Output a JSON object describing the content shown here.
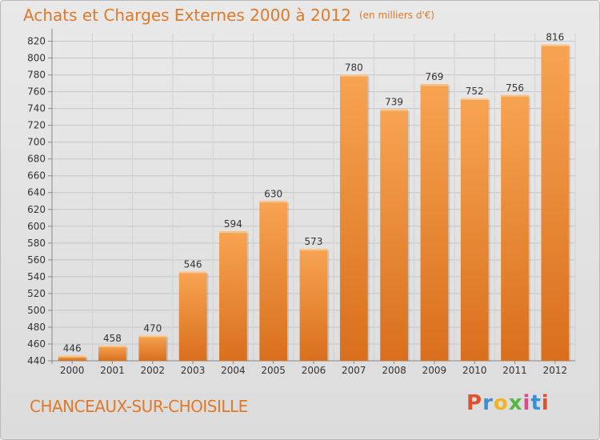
{
  "header": {
    "title": "Achats et Charges Externes 2000 à 2012",
    "unit": "(en milliers d'€)"
  },
  "footer": {
    "commune": "CHANCEAUX-SUR-CHOISILLE",
    "logo_letters": [
      "P",
      "r",
      "o",
      "x",
      "i",
      "t",
      "i"
    ]
  },
  "colors": {
    "bar_top": "#f7a452",
    "bar_bottom": "#d96f1c",
    "title": "#e07a2a"
  },
  "chart_data": {
    "type": "bar",
    "categories": [
      "2000",
      "2001",
      "2002",
      "2003",
      "2004",
      "2005",
      "2006",
      "2007",
      "2008",
      "2009",
      "2010",
      "2011",
      "2012"
    ],
    "values": [
      446,
      458,
      470,
      546,
      594,
      630,
      573,
      780,
      739,
      769,
      752,
      756,
      816
    ],
    "ylim": [
      440,
      830
    ],
    "yticks": [
      440,
      460,
      480,
      500,
      520,
      540,
      560,
      580,
      600,
      620,
      640,
      660,
      680,
      700,
      720,
      740,
      760,
      780,
      800,
      820
    ],
    "grid": true,
    "data_labels": true
  }
}
